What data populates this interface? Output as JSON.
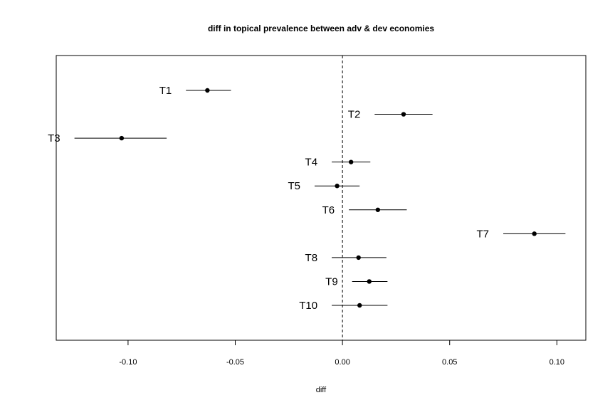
{
  "chart_data": {
    "type": "scatter",
    "title": "diff in topical prevalence between adv & dev economies",
    "xlabel": "diff",
    "ylabel": "",
    "xlim": [
      -0.1335,
      0.1135
    ],
    "x_ticks": [
      -0.1,
      -0.05,
      0.0,
      0.05,
      0.1
    ],
    "x_tick_labels": [
      "-0.10",
      "-0.05",
      "0.00",
      "0.05",
      "0.10"
    ],
    "reference_line": 0,
    "grid": false,
    "legend": "none",
    "point_color": "#000000",
    "series": [
      {
        "points": [
          {
            "label": "T1",
            "estimate": -0.063,
            "lower": -0.073,
            "upper": -0.052
          },
          {
            "label": "T2",
            "estimate": 0.0285,
            "lower": 0.015,
            "upper": 0.042
          },
          {
            "label": "T3",
            "estimate": -0.103,
            "lower": -0.125,
            "upper": -0.082
          },
          {
            "label": "T4",
            "estimate": 0.004,
            "lower": -0.005,
            "upper": 0.013
          },
          {
            "label": "T5",
            "estimate": -0.0025,
            "lower": -0.013,
            "upper": 0.008
          },
          {
            "label": "T6",
            "estimate": 0.0165,
            "lower": 0.003,
            "upper": 0.03
          },
          {
            "label": "T7",
            "estimate": 0.0895,
            "lower": 0.075,
            "upper": 0.104
          },
          {
            "label": "T8",
            "estimate": 0.0075,
            "lower": -0.005,
            "upper": 0.0205
          },
          {
            "label": "T9",
            "estimate": 0.0125,
            "lower": 0.0045,
            "upper": 0.021
          },
          {
            "label": "T10",
            "estimate": 0.008,
            "lower": -0.005,
            "upper": 0.021
          }
        ]
      }
    ]
  }
}
